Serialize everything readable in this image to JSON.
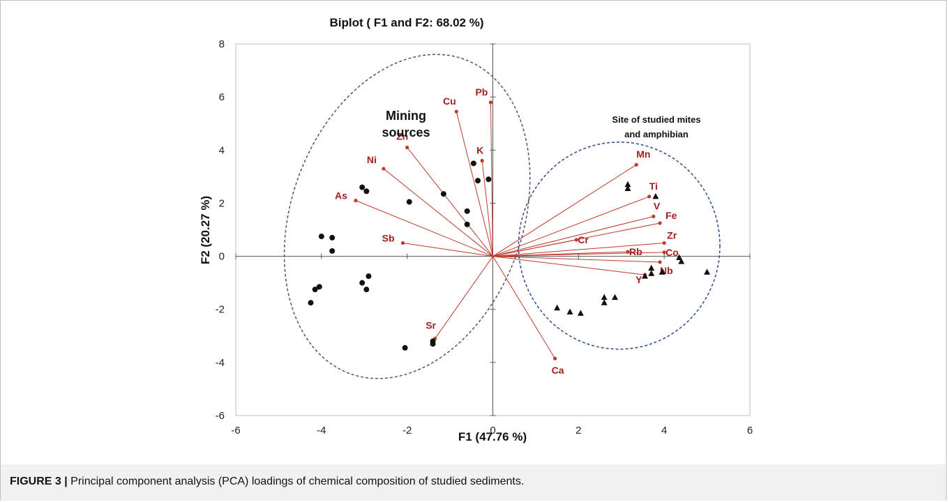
{
  "chart_data": {
    "type": "scatter",
    "title": "Biplot ( F1 and F2: 68.02 %)",
    "xlabel": "F1 (47.76 %)",
    "ylabel": "F2 (20.27 %)",
    "xlim": [
      -6,
      6
    ],
    "ylim": [
      -6,
      8
    ],
    "xticks": [
      -6,
      -4,
      -2,
      0,
      2,
      4,
      6
    ],
    "yticks": [
      -6,
      -4,
      -2,
      0,
      2,
      4,
      6,
      8
    ],
    "grid": false,
    "legend": "none",
    "colors": {
      "vector": "#c0392b",
      "label": "#a32020",
      "points": "#111111",
      "mining_ellipse": "#555555",
      "site_circle": "#2b4a8c",
      "axes": "#555555"
    },
    "loadings": [
      {
        "name": "Pb",
        "x": -0.05,
        "y": 5.8
      },
      {
        "name": "Cu",
        "x": -0.85,
        "y": 5.45
      },
      {
        "name": "Zn",
        "x": -2.0,
        "y": 4.1
      },
      {
        "name": "K",
        "x": -0.25,
        "y": 3.6
      },
      {
        "name": "Ni",
        "x": -2.55,
        "y": 3.3
      },
      {
        "name": "As",
        "x": -3.2,
        "y": 2.1
      },
      {
        "name": "Sb",
        "x": -2.1,
        "y": 0.5
      },
      {
        "name": "Sr",
        "x": -1.35,
        "y": -3.1
      },
      {
        "name": "Ca",
        "x": 1.45,
        "y": -3.85
      },
      {
        "name": "Mn",
        "x": 3.35,
        "y": 3.45
      },
      {
        "name": "Ti",
        "x": 3.65,
        "y": 2.25
      },
      {
        "name": "V",
        "x": 3.75,
        "y": 1.5
      },
      {
        "name": "Fe",
        "x": 3.9,
        "y": 1.25
      },
      {
        "name": "Cr",
        "x": 1.95,
        "y": 0.62
      },
      {
        "name": "Zr",
        "x": 4.0,
        "y": 0.5
      },
      {
        "name": "Rb",
        "x": 3.15,
        "y": 0.17
      },
      {
        "name": "Co",
        "x": 4.0,
        "y": 0.15
      },
      {
        "name": "Nb",
        "x": 3.9,
        "y": -0.22
      },
      {
        "name": "Y",
        "x": 3.55,
        "y": -0.7
      }
    ],
    "observations_circle": [
      {
        "x": -0.1,
        "y": 2.9
      },
      {
        "x": -0.35,
        "y": 2.85
      },
      {
        "x": -0.45,
        "y": 3.5
      },
      {
        "x": -1.15,
        "y": 2.35
      },
      {
        "x": -1.95,
        "y": 2.05
      },
      {
        "x": -0.6,
        "y": 1.7
      },
      {
        "x": -0.6,
        "y": 1.2
      },
      {
        "x": -3.05,
        "y": 2.6
      },
      {
        "x": -2.95,
        "y": 2.45
      },
      {
        "x": -4.0,
        "y": 0.75
      },
      {
        "x": -3.75,
        "y": 0.7
      },
      {
        "x": -3.75,
        "y": 0.2
      },
      {
        "x": -2.9,
        "y": -0.75
      },
      {
        "x": -3.05,
        "y": -1.0
      },
      {
        "x": -2.95,
        "y": -1.25
      },
      {
        "x": -4.05,
        "y": -1.15
      },
      {
        "x": -4.15,
        "y": -1.25
      },
      {
        "x": -4.25,
        "y": -1.75
      },
      {
        "x": -1.4,
        "y": -3.2
      },
      {
        "x": -1.4,
        "y": -3.3
      },
      {
        "x": -2.05,
        "y": -3.45
      }
    ],
    "observations_triangle": [
      {
        "x": 3.15,
        "y": 2.7
      },
      {
        "x": 3.15,
        "y": 2.55
      },
      {
        "x": 3.8,
        "y": 2.25
      },
      {
        "x": 4.35,
        "y": -0.05
      },
      {
        "x": 4.4,
        "y": -0.2
      },
      {
        "x": 5.0,
        "y": -0.6
      },
      {
        "x": 3.7,
        "y": -0.45
      },
      {
        "x": 3.7,
        "y": -0.65
      },
      {
        "x": 3.95,
        "y": -0.6
      },
      {
        "x": 3.55,
        "y": -0.75
      },
      {
        "x": 1.5,
        "y": -1.95
      },
      {
        "x": 1.8,
        "y": -2.1
      },
      {
        "x": 2.05,
        "y": -2.15
      },
      {
        "x": 2.6,
        "y": -1.55
      },
      {
        "x": 2.6,
        "y": -1.75
      },
      {
        "x": 2.85,
        "y": -1.55
      }
    ],
    "annotations": {
      "mining_line1": "Mining",
      "mining_line2": "sources",
      "site_line1": "Site of studied mites",
      "site_line2": "and amphibian"
    },
    "regions": {
      "mining_ellipse": {
        "cx": -2.0,
        "cy": 1.5,
        "rx": 2.7,
        "ry": 6.3,
        "rotate_deg": 20
      },
      "site_circle": {
        "cx": 2.95,
        "cy": 0.4,
        "rx": 2.35,
        "ry": 3.9
      }
    }
  },
  "caption": {
    "figure": "FIGURE 3 |",
    "text": " Principal component analysis (PCA) loadings of chemical composition of studied sediments."
  }
}
